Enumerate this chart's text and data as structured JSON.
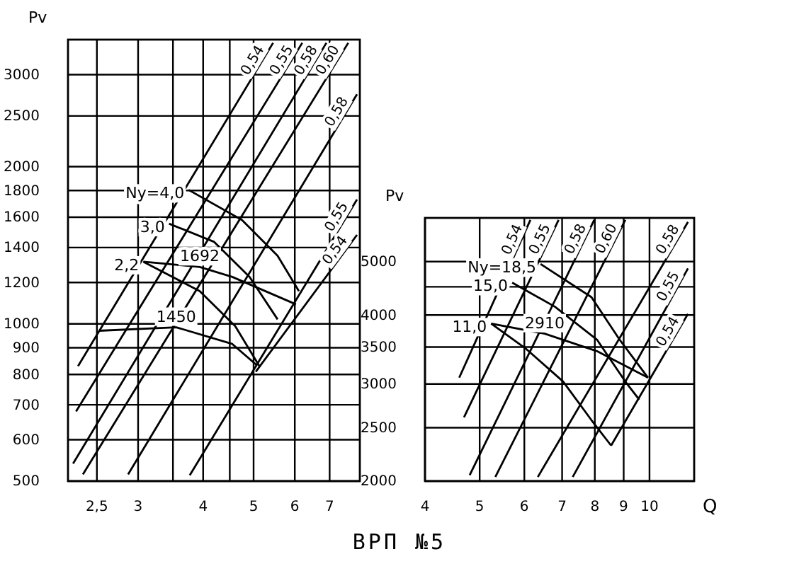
{
  "chart_data": [
    {
      "type": "line",
      "log": "xy",
      "grid": true,
      "ylabel": "Pv",
      "annotations": [
        "ВРП №5"
      ],
      "xlim": [
        2.2,
        8
      ],
      "ylim": [
        500,
        3500
      ],
      "xticks": [
        {
          "value": 2.5,
          "label": "2,5"
        },
        3,
        {
          "value": 3.5,
          "label": null
        },
        4,
        {
          "value": 4.5,
          "label": null
        },
        5,
        6,
        7
      ],
      "yticks": [
        500,
        600,
        700,
        800,
        900,
        1000,
        1200,
        1400,
        1600,
        1800,
        2000,
        2500,
        3000
      ],
      "series": [
        {
          "name": "1450",
          "color": "#000000",
          "x": [
            2.52,
            3.55,
            4.55,
            5.06
          ],
          "values": [
            970,
            985,
            915,
            835
          ]
        },
        {
          "name": "1692",
          "color": "#000000",
          "x": [
            3.07,
            3.94,
            4.55,
            6.03
          ],
          "values": [
            1315,
            1285,
            1230,
            1090
          ]
        },
        {
          "name": "Ny=4,0",
          "color": "#000000",
          "x": [
            3.75,
            4.75,
            5.56,
            6.11
          ],
          "values": [
            1805,
            1580,
            1350,
            1155
          ]
        },
        {
          "name": "3,0",
          "color": "#000000",
          "x": [
            3.44,
            4.2,
            4.91,
            5.56
          ],
          "values": [
            1555,
            1435,
            1230,
            1020
          ]
        },
        {
          "name": "2,2",
          "color": "#000000",
          "x": [
            3.07,
            3.94,
            4.61,
            5.13
          ],
          "values": [
            1315,
            1155,
            990,
            830
          ]
        },
        {
          "name": "0,54",
          "color": "#000000",
          "x": [
            2.3,
            5.45
          ],
          "values": [
            830,
            3450
          ]
        },
        {
          "name": "0,55",
          "color": "#000000",
          "x": [
            2.28,
            6.2
          ],
          "values": [
            680,
            3450
          ]
        },
        {
          "name": "0,58",
          "color": "#000000",
          "x": [
            2.25,
            6.9
          ],
          "values": [
            540,
            3450
          ]
        },
        {
          "name": "0,60",
          "color": "#000000",
          "x": [
            2.35,
            7.6
          ],
          "values": [
            515,
            3450
          ]
        },
        {
          "name": "0,58",
          "color": "#000000",
          "x": [
            2.87,
            7.9
          ],
          "values": [
            515,
            2750
          ]
        },
        {
          "name": "0,55",
          "color": "#000000",
          "x": [
            3.77,
            7.9
          ],
          "values": [
            513,
            1730
          ]
        },
        {
          "name": "0,54",
          "color": "#000000",
          "x": [
            5.05,
            7.9
          ],
          "values": [
            810,
            1480
          ]
        }
      ]
    },
    {
      "type": "line",
      "log": "xy",
      "grid": true,
      "ylabel": "Pv",
      "xlabel": "Q",
      "xlim": [
        4,
        12
      ],
      "ylim": [
        2000,
        6000
      ],
      "xticks": [
        4,
        5,
        6,
        7,
        8,
        9,
        10
      ],
      "yticks": [
        2000,
        2500,
        3000,
        3500,
        4000,
        {
          "value": 4500,
          "label": null
        },
        5000
      ],
      "series": [
        {
          "name": "2910",
          "color": "#000000",
          "x": [
            5.24,
            6.52,
            8.07,
            9.94
          ],
          "values": [
            3860,
            3700,
            3440,
            3080
          ]
        },
        {
          "name": "Ny=18,5",
          "color": "#000000",
          "x": [
            6.41,
            7.89,
            8.85,
            9.94
          ],
          "values": [
            4950,
            4310,
            3610,
            3080
          ]
        },
        {
          "name": "15,0",
          "color": "#000000",
          "x": [
            5.71,
            6.8,
            8.07,
            9.06,
            9.59
          ],
          "values": [
            4580,
            4140,
            3610,
            3030,
            2810
          ]
        },
        {
          "name": "11,0",
          "color": "#000000",
          "x": [
            5.24,
            6.05,
            7.03,
            7.89,
            8.55
          ],
          "values": [
            3860,
            3470,
            3030,
            2580,
            2320
          ]
        },
        {
          "name": "0,54",
          "color": "#000000",
          "x": [
            4.6,
            6.15
          ],
          "values": [
            3080,
            5950
          ]
        },
        {
          "name": "0,55",
          "color": "#000000",
          "x": [
            4.69,
            6.9
          ],
          "values": [
            2610,
            5950
          ]
        },
        {
          "name": "0,58",
          "color": "#000000",
          "x": [
            4.8,
            7.98
          ],
          "values": [
            2050,
            5950
          ]
        },
        {
          "name": "0,60",
          "color": "#000000",
          "x": [
            5.33,
            9.06
          ],
          "values": [
            2035,
            5950
          ]
        },
        {
          "name": "0,58",
          "color": "#000000",
          "x": [
            6.34,
            11.7
          ],
          "values": [
            2035,
            5900
          ]
        },
        {
          "name": "0,55",
          "color": "#000000",
          "x": [
            7.31,
            11.7
          ],
          "values": [
            2035,
            4860
          ]
        },
        {
          "name": "0,54",
          "color": "#000000",
          "x": [
            8.55,
            11.7
          ],
          "values": [
            2320,
            4020
          ]
        }
      ]
    }
  ]
}
